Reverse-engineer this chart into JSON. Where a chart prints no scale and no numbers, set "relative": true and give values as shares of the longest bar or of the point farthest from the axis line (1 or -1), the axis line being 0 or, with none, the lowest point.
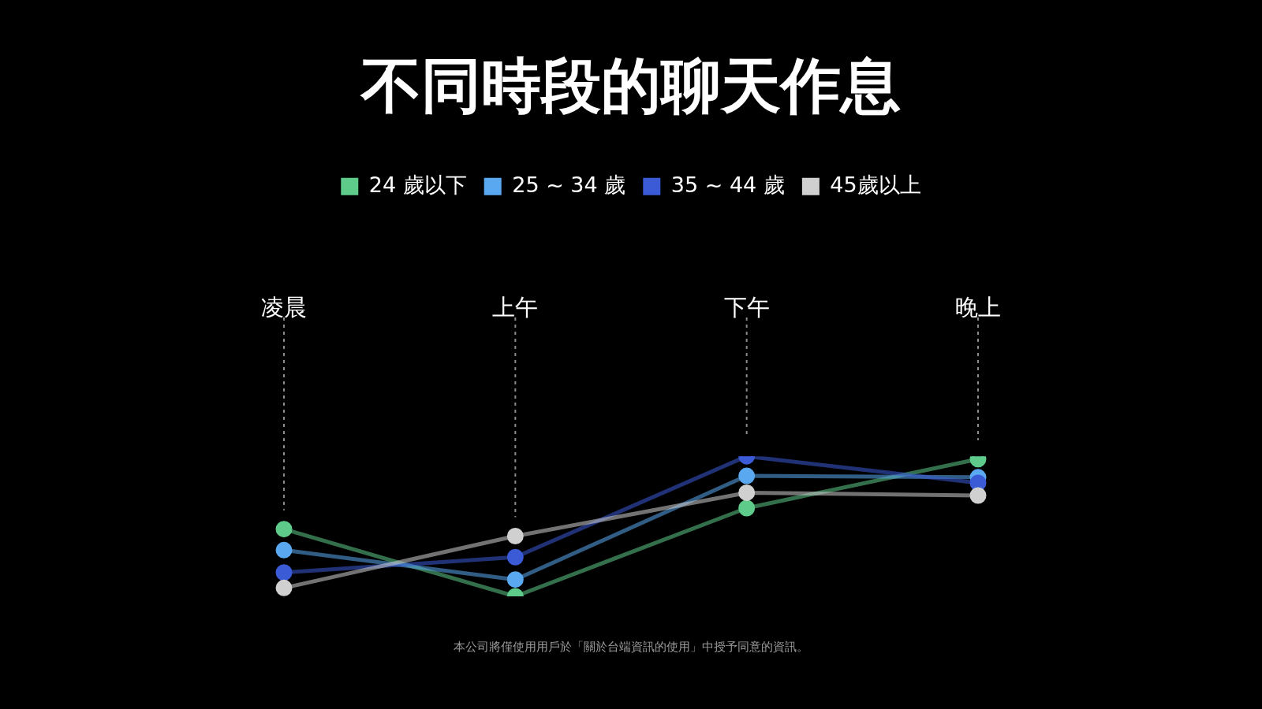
{
  "chart_data": {
    "type": "line",
    "title": "不同時段的聊天作息",
    "categories": [
      "凌晨",
      "上午",
      "下午",
      "晚上"
    ],
    "relative": true,
    "legend": "top",
    "grid": "x",
    "marker": "circle",
    "series": [
      {
        "name": "24 歲以下",
        "color": "#5ecb8b",
        "values": [
          0.48,
          0,
          0.63,
          0.98
        ]
      },
      {
        "name": "25 ~ 34 歲",
        "color": "#5aa9f0",
        "values": [
          0.33,
          0.12,
          0.86,
          0.85
        ]
      },
      {
        "name": "35 ~ 44 歲",
        "color": "#3b5bd6",
        "values": [
          0.17,
          0.28,
          1,
          0.81
        ]
      },
      {
        "name": "45歲以上",
        "color": "#d0d0d0",
        "values": [
          0.06,
          0.43,
          0.74,
          0.72
        ]
      }
    ],
    "annotations": [
      "本公司將僅使用用戶於「關於台端資訊的使用」中授予同意的資訊。"
    ]
  }
}
